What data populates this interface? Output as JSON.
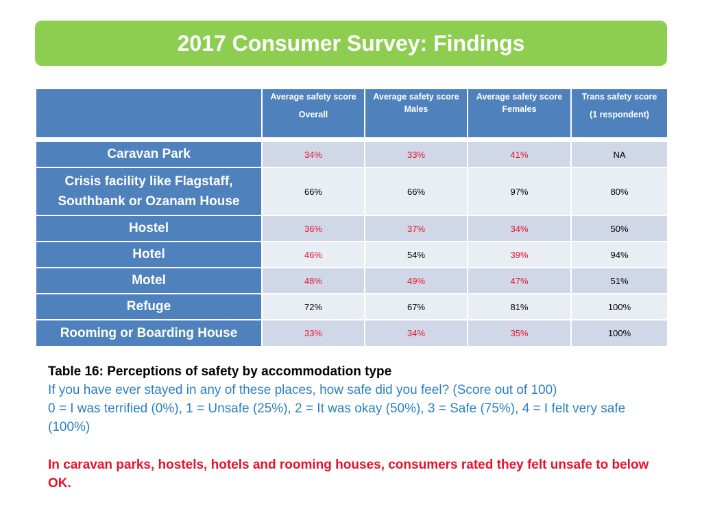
{
  "title": "2017 Consumer Survey: Findings",
  "table": {
    "columns": [
      {
        "line1": "Average safety score",
        "line2": "Overall"
      },
      {
        "line1": "Average safety score",
        "line2": "Males"
      },
      {
        "line1": "Average safety score",
        "line2": "Females"
      },
      {
        "line1": "Trans safety score",
        "line2": "(1 respondent)"
      }
    ],
    "rows": [
      {
        "label": "Caravan Park",
        "values": [
          "34%",
          "33%",
          "41%",
          "NA"
        ]
      },
      {
        "label": "Crisis facility like Flagstaff, Southbank or Ozanam House",
        "values": [
          "66%",
          "66%",
          "97%",
          "80%"
        ]
      },
      {
        "label": "Hostel",
        "values": [
          "36%",
          "37%",
          "34%",
          "50%"
        ]
      },
      {
        "label": "Hotel",
        "values": [
          "46%",
          "54%",
          "39%",
          "94%"
        ]
      },
      {
        "label": "Motel",
        "values": [
          "48%",
          "49%",
          "47%",
          "51%"
        ]
      },
      {
        "label": "Refuge",
        "values": [
          "72%",
          "67%",
          "81%",
          "100%"
        ]
      },
      {
        "label": "Rooming or Boarding House",
        "values": [
          "33%",
          "34%",
          "35%",
          "100%"
        ]
      }
    ],
    "highlight_color": "#e8102a"
  },
  "caption": {
    "title": "Table 16: Perceptions of safety by accommodation type",
    "question": "If you have ever stayed in any of these places, how safe did you feel? (Score out of 100)",
    "scale": "0 = I was terrified (0%), 1 = Unsafe (25%), 2 = It was okay (50%), 3 = Safe (75%), 4 = I felt very safe (100%)"
  },
  "note": "In caravan parks, hostels, hotels and rooming houses, consumers rated they felt unsafe to below OK."
}
